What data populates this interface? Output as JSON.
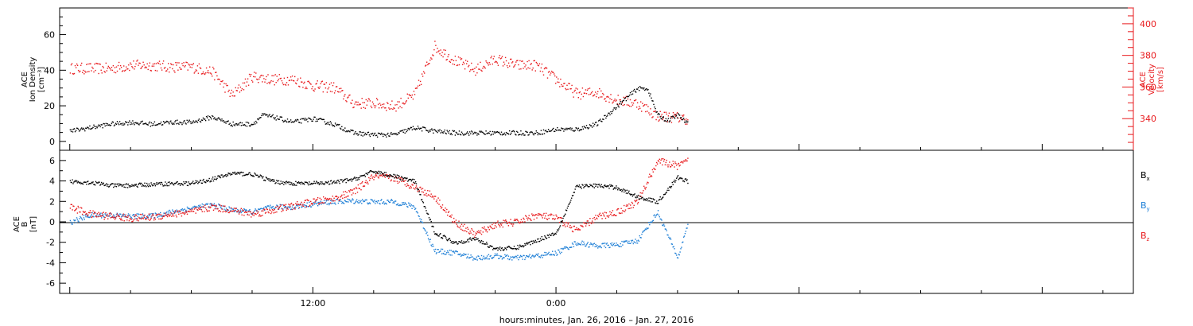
{
  "chart_data": [
    {
      "type": "scatter",
      "panel": "top",
      "ylabel_left": [
        "ACE",
        "Ion Density",
        "[cm⁻³]"
      ],
      "ylabel_right": [
        "ACE",
        "Velocity",
        "[km/s]"
      ],
      "ylim_left": [
        -5,
        75
      ],
      "ylim_right": [
        320,
        410
      ],
      "yticks_left": [
        "0",
        "20",
        "40",
        "60"
      ],
      "yticks_right": [
        "340",
        "360",
        "380",
        "400"
      ],
      "colors": {
        "density": "#000000",
        "velocity": "#e8191c"
      },
      "series": [
        {
          "name": "",
          "axis": "left",
          "x_hours": [
            0,
            1,
            2,
            3,
            4,
            5,
            6,
            7,
            8,
            9,
            9.5,
            10,
            11,
            12,
            13,
            14,
            15,
            16,
            17,
            18,
            19,
            20,
            21,
            22,
            23,
            24,
            25,
            26,
            27,
            27.5,
            28,
            28.5,
            29,
            29.5,
            30,
            30.5
          ],
          "values": [
            6,
            8,
            10,
            11,
            10,
            11,
            11,
            14,
            10,
            10,
            15,
            14,
            11,
            13,
            10,
            5,
            4,
            4,
            8,
            6,
            5,
            5,
            5,
            5,
            5,
            7,
            7,
            10,
            20,
            25,
            30,
            30,
            15,
            12,
            15,
            10
          ]
        },
        {
          "name": "",
          "axis": "right",
          "x_hours": [
            0,
            1,
            2,
            3,
            4,
            5,
            6,
            7,
            8,
            9,
            10,
            11,
            12,
            13,
            14,
            15,
            16,
            17,
            18,
            19,
            20,
            21,
            22,
            23,
            24,
            25,
            26,
            27,
            28,
            29,
            30,
            30.5
          ],
          "values": [
            372,
            372,
            372,
            374,
            374,
            373,
            373,
            370,
            355,
            367,
            365,
            365,
            361,
            360,
            350,
            350,
            348,
            355,
            386,
            377,
            371,
            378,
            374,
            374,
            365,
            356,
            357,
            352,
            350,
            342,
            341,
            340
          ]
        }
      ]
    },
    {
      "type": "scatter",
      "panel": "bottom",
      "ylabel_left": [
        "ACE",
        "B",
        "[nT]"
      ],
      "ylim": [
        -7,
        7
      ],
      "yticks": [
        "-6",
        "-4",
        "-2",
        "0",
        "2",
        "4",
        "6"
      ],
      "legend": [
        "B",
        "B",
        "B"
      ],
      "legend_subscripts": [
        "x",
        "y",
        "z"
      ],
      "colors": {
        "Bx": "#000000",
        "By": "#1e7fd6",
        "Bz": "#e8191c"
      },
      "series": [
        {
          "name": "Bx",
          "x_hours": [
            0,
            1,
            2,
            3,
            4,
            5,
            6,
            7,
            8,
            9,
            10,
            11,
            12,
            13,
            14,
            15,
            16,
            17,
            18,
            19,
            20,
            21,
            22,
            23,
            24,
            25,
            26,
            27,
            28,
            29,
            30,
            30.5
          ],
          "values": [
            4,
            3.9,
            3.6,
            3.6,
            3.7,
            3.8,
            3.8,
            4.2,
            4.8,
            4.7,
            4.0,
            3.8,
            3.8,
            3.9,
            4.2,
            5.0,
            4.5,
            4.0,
            -1,
            -2,
            -1.6,
            -2.6,
            -2.5,
            -1.8,
            -1,
            3.5,
            3.6,
            3.4,
            2.5,
            2.0,
            4.4,
            4.0
          ]
        },
        {
          "name": "By",
          "x_hours": [
            0,
            1,
            2,
            3,
            4,
            5,
            6,
            7,
            8,
            9,
            10,
            11,
            12,
            13,
            14,
            15,
            16,
            17,
            18,
            19,
            20,
            21,
            22,
            23,
            24,
            25,
            26,
            27,
            28,
            29,
            30,
            30.5
          ],
          "values": [
            0,
            0.7,
            0.7,
            0.6,
            0.6,
            1.0,
            1.4,
            1.7,
            1.2,
            1.0,
            1.5,
            1.5,
            1.8,
            2.0,
            2.1,
            2.0,
            2.0,
            1.5,
            -2.8,
            -3,
            -3.5,
            -3.3,
            -3.5,
            -3.3,
            -3,
            -2,
            -2.3,
            -2.2,
            -1.8,
            1.0,
            -3.5,
            0
          ]
        },
        {
          "name": "Bz",
          "x_hours": [
            0,
            1,
            2,
            3,
            4,
            5,
            6,
            7,
            8,
            9,
            10,
            11,
            12,
            13,
            14,
            15,
            16,
            17,
            18,
            19,
            20,
            21,
            22,
            23,
            24,
            25,
            26,
            27,
            28,
            29,
            30,
            30.5
          ],
          "values": [
            1.5,
            0.8,
            0.6,
            0.4,
            0.5,
            0.8,
            1.0,
            1.5,
            1.2,
            0.8,
            1.2,
            1.6,
            2.0,
            2.3,
            3.0,
            4.5,
            4.3,
            3.5,
            2.5,
            0,
            -1.2,
            -0.2,
            0,
            0.7,
            0.4,
            -0.8,
            0.5,
            1.0,
            2.0,
            6.0,
            5.5,
            6.0
          ]
        }
      ]
    }
  ],
  "x_axis": {
    "tick_labels": [
      "12:00",
      "0:00"
    ],
    "tick_hours": [
      12,
      24
    ],
    "range_hours": [
      -0.5,
      52.5
    ],
    "title": "hours:minutes, Jan. 26, 2016 – Jan. 27, 2016"
  }
}
